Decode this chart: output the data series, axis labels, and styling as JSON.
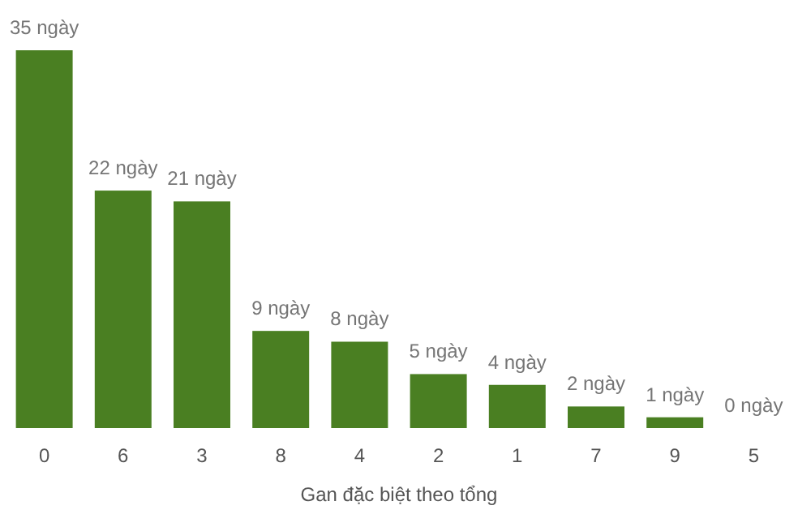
{
  "chart_data": {
    "type": "bar",
    "xlabel": "Gan đặc biệt theo tổng",
    "categories": [
      "0",
      "6",
      "3",
      "8",
      "4",
      "2",
      "1",
      "7",
      "9",
      "5"
    ],
    "values": [
      35,
      22,
      21,
      9,
      8,
      5,
      4,
      2,
      1,
      0
    ],
    "value_labels": [
      "35 ngày",
      "22 ngày",
      "21 ngày",
      "9 ngày",
      "8 ngày",
      "5 ngày",
      "4 ngày",
      "2 ngày",
      "1 ngày",
      "0 ngày"
    ],
    "color": "#4a7f22"
  }
}
